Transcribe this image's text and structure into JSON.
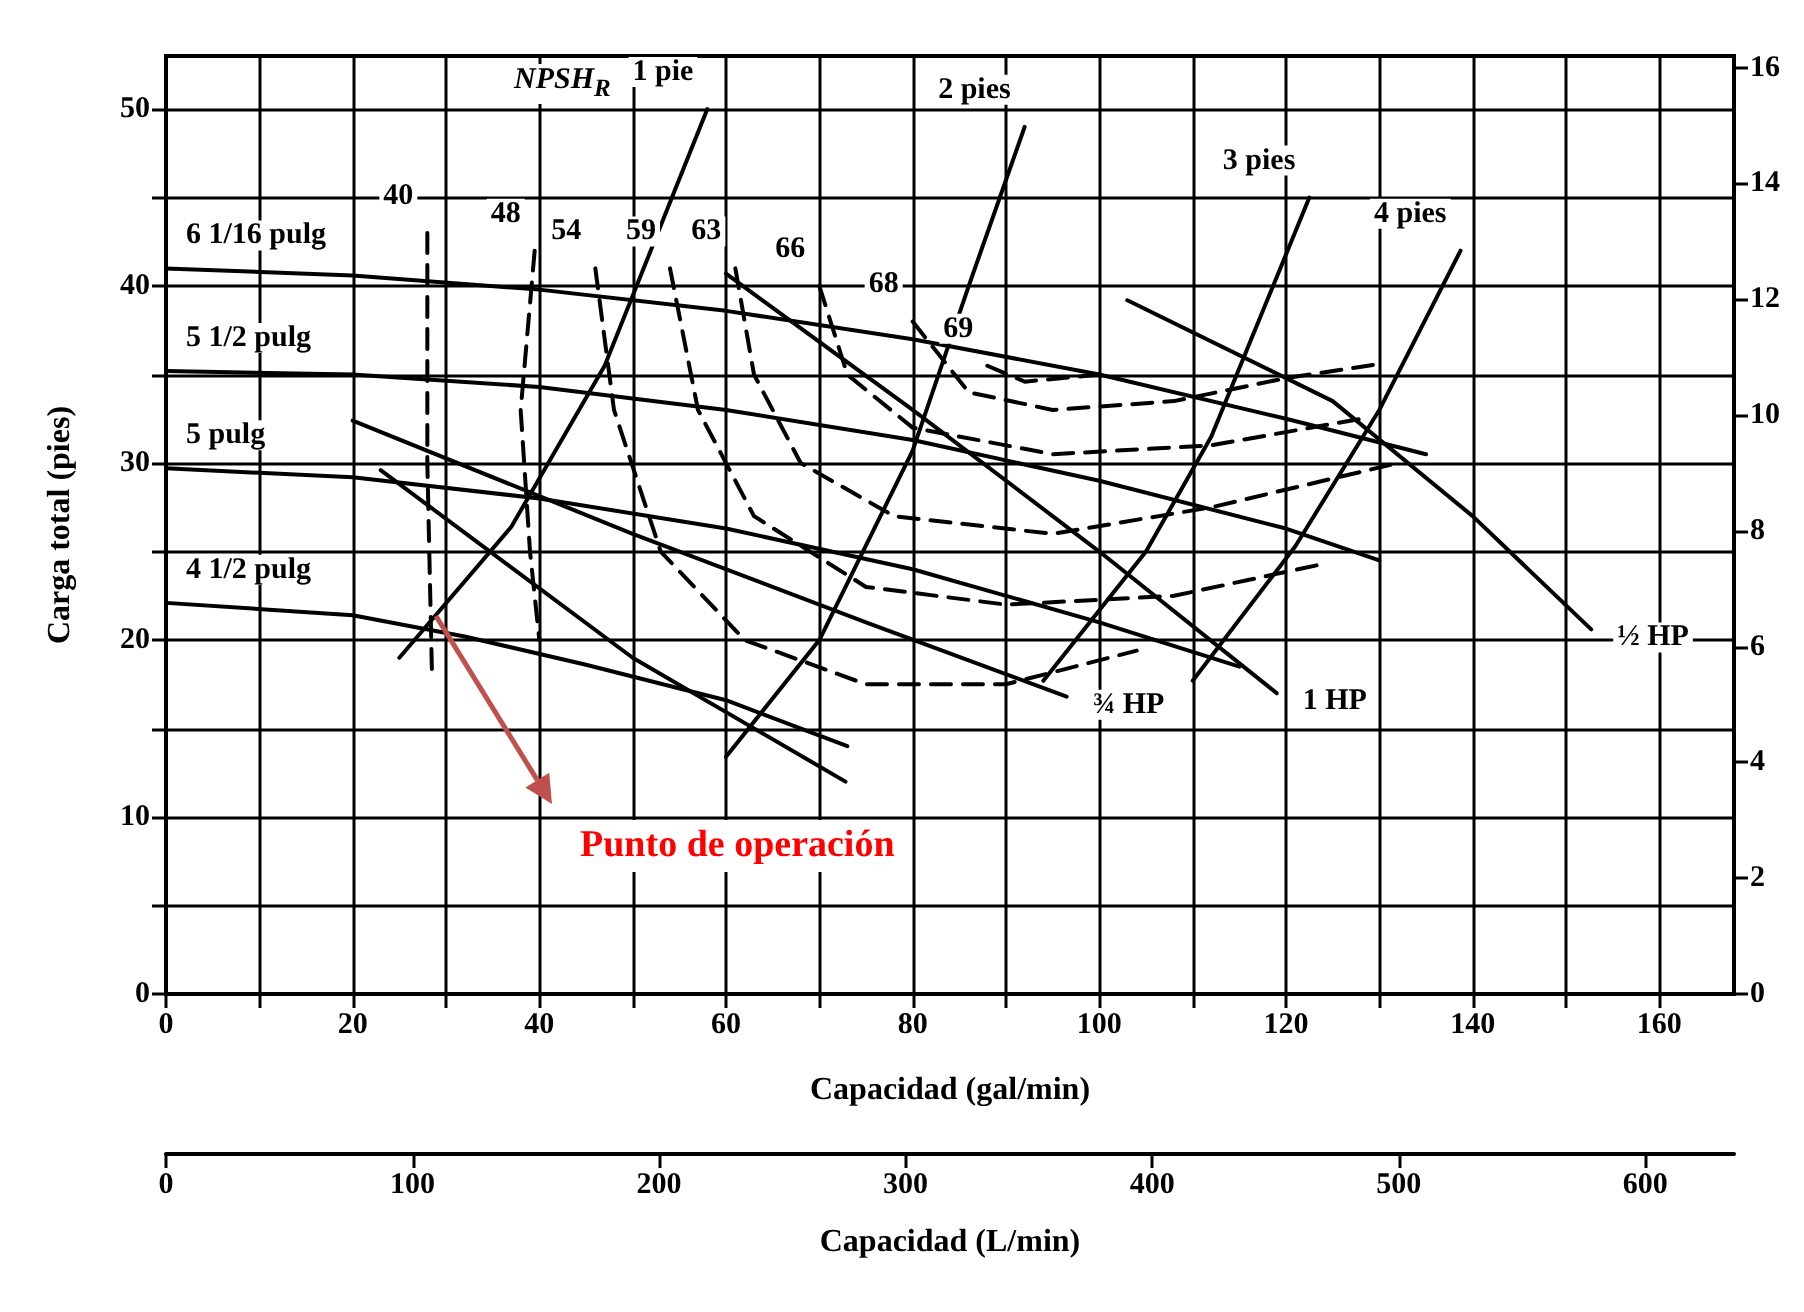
{
  "chart_data": {
    "type": "line",
    "xlabel": "Capacidad (gal/min)",
    "x2label": "Capacidad (L/min)",
    "ylabel": "Carga total (pies)",
    "xlim": [
      0,
      168
    ],
    "xticks": [
      0,
      {
        "value": 10,
        "label": null
      },
      20,
      {
        "value": 30,
        "label": null
      },
      40,
      {
        "value": 50,
        "label": null
      },
      60,
      {
        "value": 70,
        "label": null
      },
      80,
      {
        "value": 90,
        "label": null
      },
      100,
      {
        "value": 110,
        "label": null
      },
      120,
      {
        "value": 130,
        "label": null
      },
      140,
      {
        "value": 150,
        "label": null
      },
      160
    ],
    "x2lim": [
      0,
      636
    ],
    "x2ticks": [
      0,
      100,
      200,
      300,
      400,
      500,
      600
    ],
    "ylim": [
      0,
      53
    ],
    "yticks": [
      0,
      {
        "value": 5,
        "label": null
      },
      10,
      {
        "value": 15,
        "label": null
      },
      20,
      {
        "value": 25,
        "label": null
      },
      30,
      {
        "value": 35,
        "label": null
      },
      40,
      {
        "value": 45,
        "label": null
      },
      50
    ],
    "y2lim": [
      0,
      16.2
    ],
    "y2ticks": [
      0,
      2,
      4,
      6,
      8,
      10,
      12,
      14,
      16
    ],
    "grid": true,
    "marker": "none",
    "annotations": [
      "NPSH$_{R}$",
      "Punto de operación"
    ],
    "series": [
      {
        "name": "6 1/16 pulg",
        "color": "#000000",
        "line_style": "solid",
        "x": [
          0,
          20,
          40,
          60,
          80,
          100,
          120,
          135
        ],
        "values": [
          41,
          40.6,
          39.8,
          38.6,
          37,
          35,
          32.5,
          30.5
        ]
      },
      {
        "name": "5 1/2 pulg",
        "color": "#000000",
        "line_style": "solid",
        "x": [
          0,
          20,
          40,
          60,
          80,
          100,
          120,
          130
        ],
        "values": [
          35.2,
          35,
          34.3,
          33,
          31.3,
          29,
          26.3,
          24.5
        ]
      },
      {
        "name": "5 pulg",
        "color": "#000000",
        "line_style": "solid",
        "x": [
          0,
          20,
          40,
          60,
          80,
          100,
          115
        ],
        "values": [
          29.7,
          29.2,
          28,
          26.3,
          24,
          21,
          18.5
        ]
      },
      {
        "name": "4 1/2 pulg",
        "color": "#000000",
        "line_style": "solid",
        "x": [
          0,
          20,
          32,
          45,
          60,
          73
        ],
        "values": [
          22.1,
          21.4,
          20.2,
          18.6,
          16.6,
          14
        ]
      },
      {
        "name": "1 pie",
        "color": "#000000",
        "line_style": "solid",
        "x": [
          58,
          47,
          37,
          25
        ],
        "values": [
          50,
          35.5,
          26.4,
          19
        ]
      },
      {
        "name": "2 pies",
        "color": "#000000",
        "line_style": "solid",
        "x": [
          92,
          86,
          80,
          70,
          60
        ],
        "values": [
          49,
          40,
          30.7,
          20,
          13.4
        ]
      },
      {
        "name": "3 pies",
        "color": "#000000",
        "line_style": "solid",
        "x": [
          122.5,
          112,
          105,
          94
        ],
        "values": [
          45,
          31.5,
          25,
          17.7
        ]
      },
      {
        "name": "4 pies",
        "color": "#000000",
        "line_style": "solid",
        "x": [
          138.7,
          130,
          121,
          110
        ],
        "values": [
          42,
          33,
          25.3,
          17.7
        ]
      },
      {
        "name": "½ HP",
        "color": "#000000",
        "line_style": "solid",
        "x": [
          152.7,
          140,
          125,
          103
        ],
        "values": [
          20.6,
          27,
          33.5,
          39.2
        ]
      },
      {
        "name": "1 HP",
        "color": "#000000",
        "line_style": "solid",
        "x": [
          119,
          100,
          80,
          60
        ],
        "values": [
          17,
          25,
          33,
          40.7
        ]
      },
      {
        "name": "¾ HP",
        "color": "#000000",
        "line_style": "solid",
        "x": [
          96.5,
          75,
          50,
          20
        ],
        "values": [
          16.8,
          21,
          26,
          32.4
        ]
      },
      {
        "color": "#000000",
        "line_style": "solid",
        "x": [
          72.8,
          50,
          23
        ],
        "values": [
          12,
          19,
          29.6
        ]
      },
      {
        "name": "40",
        "color": "#000000",
        "line_style": "dashed",
        "x": [
          28,
          28,
          28.5
        ],
        "values": [
          43,
          30,
          18
        ]
      },
      {
        "name": "48",
        "color": "#000000",
        "line_style": "dashed",
        "x": [
          39.5,
          38,
          39,
          40
        ],
        "values": [
          42,
          33,
          25,
          20
        ]
      },
      {
        "name": "54",
        "color": "#000000",
        "line_style": "dashed",
        "x": [
          46,
          48,
          53,
          62,
          75,
          90,
          104
        ],
        "values": [
          41,
          33,
          25,
          20,
          17.5,
          17.5,
          19.4
        ]
      },
      {
        "name": "59",
        "color": "#000000",
        "line_style": "dashed",
        "x": [
          54,
          57,
          63,
          75,
          90,
          108,
          124
        ],
        "values": [
          41,
          33,
          27,
          23,
          22,
          22.5,
          24.3
        ]
      },
      {
        "name": "63",
        "color": "#000000",
        "line_style": "dashed",
        "x": [
          61,
          63,
          68,
          78,
          95,
          112,
          132
        ],
        "values": [
          41,
          35,
          30,
          27,
          26,
          27.5,
          30
        ]
      },
      {
        "name": "66",
        "color": "#000000",
        "line_style": "dashed",
        "x": [
          70,
          73,
          80,
          95,
          112,
          128
        ],
        "values": [
          40,
          35,
          32,
          30.5,
          31,
          32.5
        ]
      },
      {
        "name": "68",
        "color": "#000000",
        "line_style": "dashed",
        "x": [
          80,
          86,
          95,
          108,
          120,
          130
        ],
        "values": [
          38,
          34,
          33,
          33.5,
          34.8,
          35.6
        ]
      },
      {
        "name": "69",
        "color": "#000000",
        "line_style": "dashed",
        "x": [
          88,
          92,
          100
        ],
        "values": [
          35.5,
          34.6,
          35
        ]
      }
    ]
  }
}
